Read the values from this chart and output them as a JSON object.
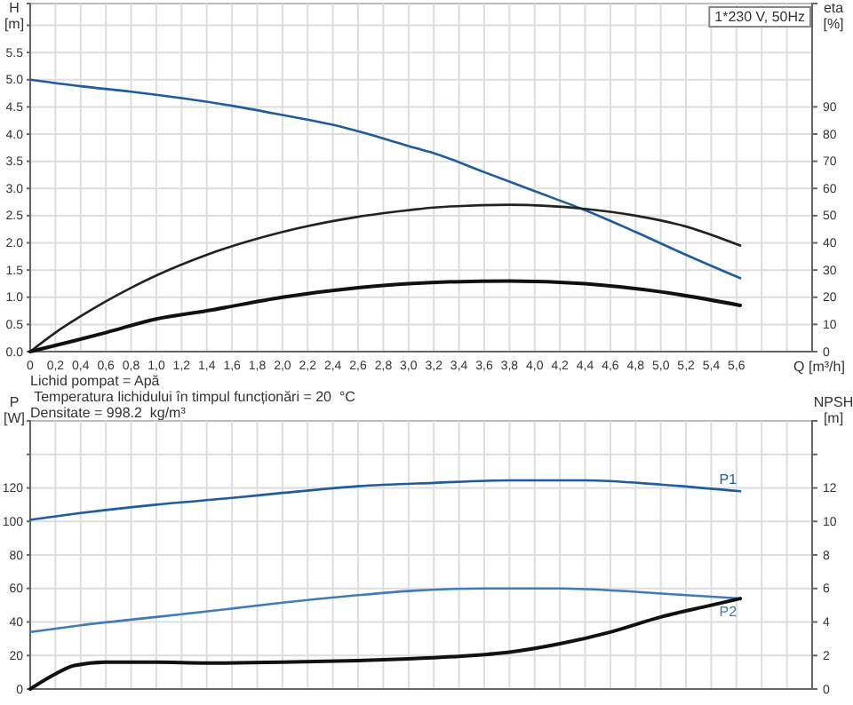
{
  "chart_data": [
    {
      "type": "line",
      "title": "1*230 V, 50Hz",
      "xlabel": "Q [m³/h]",
      "ylabel": "H [m]",
      "y2label": "eta [%]",
      "annotations": [
        "Lichid pompat = Apă",
        " Temperatura lichidului în timpul funcționări = 20  °C",
        "Densitate = 998.2  kg/m³"
      ],
      "xlim": [
        0,
        6.2
      ],
      "xticks": [
        {
          "value": 0,
          "label": "0"
        },
        {
          "value": 0.2,
          "label": "0,2"
        },
        {
          "value": 0.4,
          "label": "0,4"
        },
        {
          "value": 0.6,
          "label": "0,6"
        },
        {
          "value": 0.8,
          "label": "0,8"
        },
        {
          "value": 1.0,
          "label": "1,0"
        },
        {
          "value": 1.2,
          "label": "1,2"
        },
        {
          "value": 1.4,
          "label": "1,4"
        },
        {
          "value": 1.6,
          "label": "1,6"
        },
        {
          "value": 1.8,
          "label": "1,8"
        },
        {
          "value": 2.0,
          "label": "2,0"
        },
        {
          "value": 2.2,
          "label": "2,2"
        },
        {
          "value": 2.4,
          "label": "2,4"
        },
        {
          "value": 2.6,
          "label": "2,6"
        },
        {
          "value": 2.8,
          "label": "2,8"
        },
        {
          "value": 3.0,
          "label": "3,0"
        },
        {
          "value": 3.2,
          "label": "3,2"
        },
        {
          "value": 3.4,
          "label": "3,4"
        },
        {
          "value": 3.6,
          "label": "3,6"
        },
        {
          "value": 3.8,
          "label": "3,8"
        },
        {
          "value": 4.0,
          "label": "4,0"
        },
        {
          "value": 4.2,
          "label": "4,2"
        },
        {
          "value": 4.4,
          "label": "4,4"
        },
        {
          "value": 4.6,
          "label": "4,6"
        },
        {
          "value": 4.8,
          "label": "4,8"
        },
        {
          "value": 5.0,
          "label": "5,0"
        },
        {
          "value": 5.2,
          "label": "5,2"
        },
        {
          "value": 5.4,
          "label": "5,4"
        },
        {
          "value": 5.6,
          "label": "5,6"
        },
        {
          "value": 5.8,
          "label": null
        },
        {
          "value": 6.0,
          "label": null
        },
        {
          "value": 6.2,
          "label": null
        }
      ],
      "ylim": [
        0,
        6.4
      ],
      "yticks": [
        {
          "value": 0,
          "label": "0.0"
        },
        0.5,
        {
          "value": 1,
          "label": "1.0"
        },
        1.5,
        {
          "value": 2,
          "label": "2.0"
        },
        2.5,
        {
          "value": 3,
          "label": "3.0"
        },
        3.5,
        {
          "value": 4,
          "label": "4.0"
        },
        4.5,
        {
          "value": 5,
          "label": "5.0"
        },
        5.5,
        {
          "value": 6,
          "label": null
        }
      ],
      "y2lim": [
        0,
        128
      ],
      "y2ticks": [
        0,
        10,
        20,
        30,
        40,
        50,
        60,
        70,
        80,
        90
      ],
      "grid": true,
      "series": [
        {
          "color": "#1f5c9e",
          "x": [
            0,
            0.4,
            0.8,
            1.2,
            1.6,
            2.0,
            2.4,
            2.8,
            3.0,
            3.2,
            3.6,
            4.0,
            4.4,
            4.8,
            5.2,
            5.63
          ],
          "values": [
            5.0,
            4.88,
            4.78,
            4.66,
            4.52,
            4.35,
            4.17,
            3.92,
            3.78,
            3.65,
            3.3,
            2.95,
            2.6,
            2.2,
            1.78,
            1.35
          ]
        },
        {
          "color": "#222222",
          "axis": "y2",
          "x": [
            0,
            0.2,
            0.4,
            0.6,
            0.8,
            1.0,
            1.4,
            2.0,
            2.6,
            3.0,
            3.2,
            3.8,
            4.4,
            4.8,
            5.2,
            5.63
          ],
          "values": [
            0,
            7,
            13,
            18.5,
            23.5,
            28,
            35.6,
            44,
            49.6,
            52,
            53,
            54,
            52.5,
            50,
            46,
            39
          ]
        },
        {
          "color": "#111111",
          "axis": "y2",
          "x": [
            0,
            0.35,
            0.6,
            1.0,
            1.4,
            2.0,
            2.6,
            3.0,
            3.8,
            4.4,
            5.0,
            5.63
          ],
          "values": [
            0,
            4,
            7,
            12,
            15,
            20,
            23.5,
            25,
            26,
            25,
            22,
            17
          ]
        }
      ]
    },
    {
      "type": "line",
      "ylabel": "P [W]",
      "y2label": "NPSH [m]",
      "tick_labels": "y",
      "xlim": [
        0,
        6.2
      ],
      "xticks": [
        0,
        0.2,
        0.4,
        0.6,
        0.8,
        1.0,
        1.2,
        1.4,
        1.6,
        1.8,
        2.0,
        2.2,
        2.4,
        2.6,
        2.8,
        3.0,
        3.2,
        3.4,
        3.6,
        3.8,
        4.0,
        4.2,
        4.4,
        4.6,
        4.8,
        5.0,
        5.2,
        5.4,
        5.6,
        5.8,
        6.0,
        6.2
      ],
      "ylim": [
        0,
        160
      ],
      "yticks": [
        0,
        20,
        40,
        60,
        80,
        100,
        120,
        {
          "value": 140,
          "label": null
        }
      ],
      "y2lim": [
        0,
        16
      ],
      "y2ticks": [
        0,
        2,
        4,
        6,
        8,
        10,
        12,
        {
          "value": 14,
          "label": null
        }
      ],
      "grid": true,
      "series": [
        {
          "name": "P1",
          "color": "#1f5c9e",
          "x": [
            0,
            0.4,
            1.0,
            1.6,
            2.0,
            2.6,
            3.2,
            3.8,
            4.4,
            5.0,
            5.63
          ],
          "values": [
            101,
            105,
            110,
            114,
            117,
            121,
            123,
            124.5,
            124.5,
            122,
            118
          ]
        },
        {
          "name": "P2",
          "color": "#3f7bb8",
          "x": [
            0,
            0.4,
            1.0,
            1.6,
            2.0,
            2.6,
            3.0,
            3.6,
            4.2,
            4.8,
            5.2,
            5.63
          ],
          "values": [
            34,
            38,
            43,
            48,
            51.5,
            56,
            58.5,
            60,
            60,
            58,
            56,
            54
          ]
        },
        {
          "color": "#111111",
          "axis": "y2",
          "x": [
            0,
            0.2,
            0.35,
            0.6,
            1.0,
            1.4,
            2.0,
            2.6,
            3.0,
            3.4,
            3.8,
            4.2,
            4.6,
            5.0,
            5.4,
            5.63
          ],
          "values": [
            0,
            0.9,
            1.4,
            1.6,
            1.6,
            1.55,
            1.6,
            1.7,
            1.8,
            1.95,
            2.2,
            2.7,
            3.4,
            4.3,
            5.0,
            5.4
          ]
        }
      ]
    }
  ]
}
